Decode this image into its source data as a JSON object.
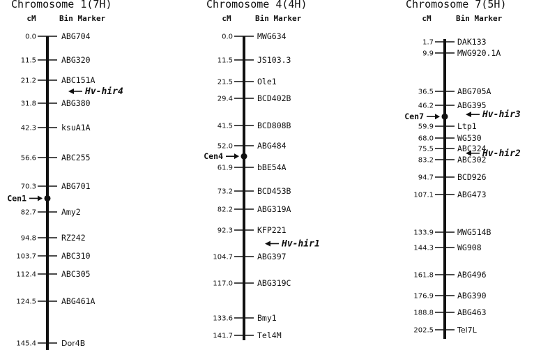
{
  "chromosomes": [
    {
      "title": "Chromosome 1(7H)",
      "cm_header": "cM",
      "marker_header": "Bin Marker",
      "markers": [
        {
          "pos": "0.0",
          "name": "ABG704"
        },
        {
          "pos": "11.5",
          "name": "ABG320"
        },
        {
          "pos": "21.2",
          "name": "ABC151A"
        },
        {
          "pos": "31.8",
          "name": "ABG380"
        },
        {
          "pos": "42.3",
          "name": "ksuA1A"
        },
        {
          "pos": "56.6",
          "name": "ABC255"
        },
        {
          "pos": "70.3",
          "name": "ABG701"
        },
        {
          "pos": "82.7",
          "name": "Amy2"
        },
        {
          "pos": "94.8",
          "name": "RZ242"
        },
        {
          "pos": "103.7",
          "name": "ABC310"
        },
        {
          "pos": "112.4",
          "name": "ABC305"
        },
        {
          "pos": "124.5",
          "name": "ABG461A"
        },
        {
          "pos": "145.4",
          "name": "Dor4B"
        }
      ],
      "centromere": {
        "label": "Cen1",
        "cm": 78.0
      },
      "genes": [
        {
          "label": "Hv-hir4",
          "cm": 26.5
        }
      ]
    },
    {
      "title": "Chromosome 4(4H)",
      "cm_header": "cM",
      "marker_header": "Bin Marker",
      "markers": [
        {
          "pos": "0.0",
          "name": "MWG634"
        },
        {
          "pos": "11.5",
          "name": "JS103.3"
        },
        {
          "pos": "21.5",
          "name": "Ole1"
        },
        {
          "pos": "29.4",
          "name": "BCD402B"
        },
        {
          "pos": "41.5",
          "name": "BCD808B"
        },
        {
          "pos": "52.0",
          "name": "ABG484"
        },
        {
          "pos": "61.9",
          "name": "bBE54A"
        },
        {
          "pos": "73.2",
          "name": "BCD453B"
        },
        {
          "pos": "82.2",
          "name": "ABG319A"
        },
        {
          "pos": "92.3",
          "name": "KFP221"
        },
        {
          "pos": "104.7",
          "name": "ABG397"
        },
        {
          "pos": "117.0",
          "name": "ABG319C"
        },
        {
          "pos": "133.6",
          "name": "Bmy1"
        },
        {
          "pos": "141.7",
          "name": "Tel4M"
        }
      ],
      "centromere": {
        "label": "Cen4",
        "cm": 57.0
      },
      "genes": [
        {
          "label": "Hv-hir1",
          "cm": 98.5
        }
      ]
    },
    {
      "title": "Chromosome 7(5H)",
      "cm_header": "cM",
      "marker_header": "Bin Marker",
      "markers": [
        {
          "pos": "1.7",
          "name": "DAK133"
        },
        {
          "pos": "9.9",
          "name": "MWG920.1A"
        },
        {
          "pos": "36.5",
          "name": "ABG705A"
        },
        {
          "pos": "46.2",
          "name": "ABG395"
        },
        {
          "pos": "59.9",
          "name": "Ltp1"
        },
        {
          "pos": "68.0",
          "name": "WG530"
        },
        {
          "pos": "75.5",
          "name": "ABC324"
        },
        {
          "pos": "83.2",
          "name": "ABC302"
        },
        {
          "pos": "94.7",
          "name": "BCD926"
        },
        {
          "pos": "107.1",
          "name": "ABG473"
        },
        {
          "pos": "133.9",
          "name": "MWG514B"
        },
        {
          "pos": "144.3",
          "name": "WG908"
        },
        {
          "pos": "161.8",
          "name": "ABG496"
        },
        {
          "pos": "176.9",
          "name": "ABG390"
        },
        {
          "pos": "188.8",
          "name": "ABG463"
        },
        {
          "pos": "202.5",
          "name": "Tel7L"
        }
      ],
      "centromere": {
        "label": "Cen7",
        "cm": 54.0
      },
      "genes": [
        {
          "label": "Hv-hir3",
          "cm": 52.5
        },
        {
          "label": "Hv-hir2",
          "cm": 79.5
        }
      ]
    }
  ]
}
